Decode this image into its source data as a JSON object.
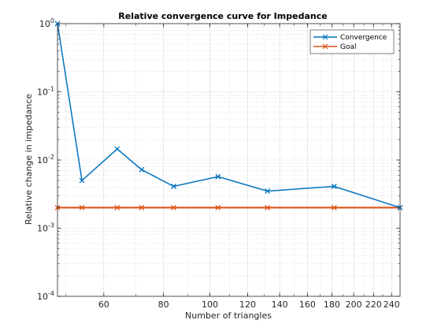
{
  "chart_data": {
    "type": "line",
    "title": "Relative convergence curve for Impedance",
    "xlabel": "Number of triangles",
    "ylabel": "Relative change in impedance",
    "x_scale": "log",
    "y_scale": "log",
    "xlim": [
      48,
      250
    ],
    "ylim": [
      0.0001,
      1
    ],
    "x_tick_labels": [
      "60",
      "80",
      "100",
      "120",
      "140",
      "160",
      "180",
      "200",
      "220",
      "240"
    ],
    "x_ticks": [
      60,
      80,
      100,
      120,
      140,
      160,
      180,
      200,
      220,
      240
    ],
    "y_ticks": [
      0.0001,
      0.001,
      0.01,
      0.1,
      1
    ],
    "y_tick_labels": [
      {
        "base": "10",
        "exp": "-4"
      },
      {
        "base": "10",
        "exp": "-3"
      },
      {
        "base": "10",
        "exp": "-2"
      },
      {
        "base": "10",
        "exp": "-1"
      },
      {
        "base": "10",
        "exp": "0"
      }
    ],
    "grid": true,
    "minor_grid": true,
    "legend_position": "top-right",
    "series": [
      {
        "name": "Convergence",
        "color": "#0072BD",
        "marker": "x",
        "x": [
          48,
          54,
          64,
          72,
          84,
          104,
          132,
          182,
          250
        ],
        "y": [
          1.0,
          0.005,
          0.0145,
          0.0072,
          0.0041,
          0.0057,
          0.0035,
          0.0041,
          0.002
        ]
      },
      {
        "name": "Goal",
        "color": "#D95319",
        "marker": "x",
        "x": [
          48,
          54,
          64,
          72,
          84,
          104,
          132,
          182,
          250
        ],
        "y": [
          0.002,
          0.002,
          0.002,
          0.002,
          0.002,
          0.002,
          0.002,
          0.002,
          0.002
        ]
      }
    ]
  }
}
